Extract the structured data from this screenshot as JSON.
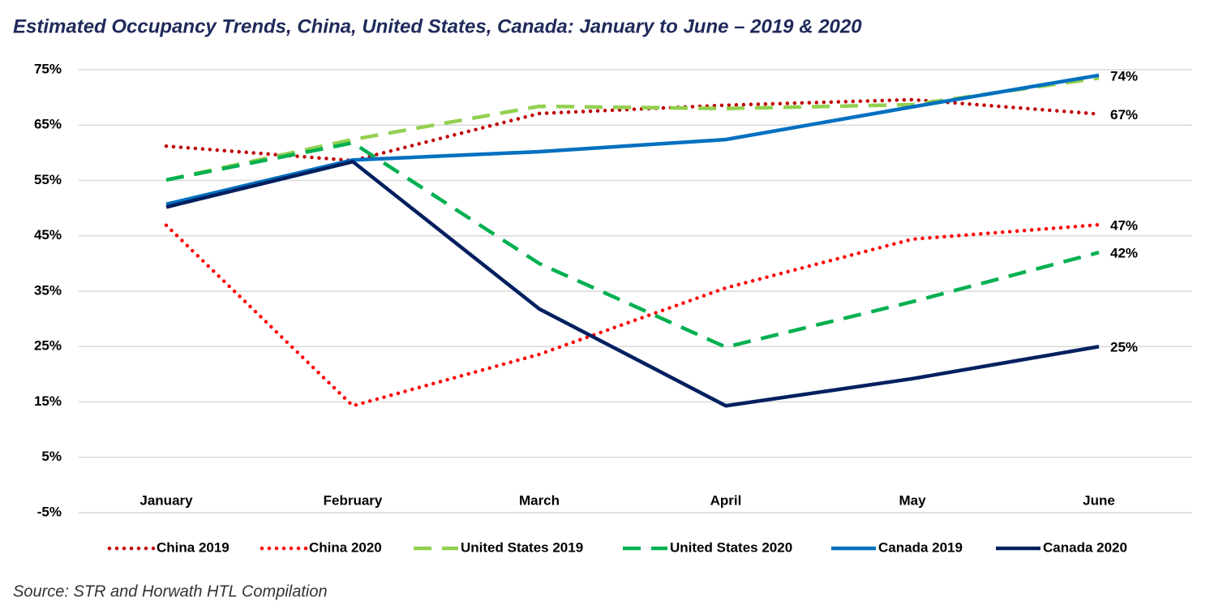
{
  "chart_data": {
    "type": "line",
    "title": "Estimated Occupancy Trends, China, United States, Canada: January to June – 2019 & 2020",
    "source": "Source: STR and Horwath HTL Compilation",
    "categories": [
      "January",
      "February",
      "March",
      "April",
      "May",
      "June"
    ],
    "ylim": [
      -5,
      75
    ],
    "yticks": [
      {
        "value": -5,
        "label": "-5%"
      },
      {
        "value": 5,
        "label": "5%"
      },
      {
        "value": 15,
        "label": "15%"
      },
      {
        "value": 25,
        "label": "25%"
      },
      {
        "value": 35,
        "label": "35%"
      },
      {
        "value": 45,
        "label": "45%"
      },
      {
        "value": 55,
        "label": "55%"
      },
      {
        "value": 65,
        "label": "65%"
      },
      {
        "value": 75,
        "label": "75%"
      }
    ],
    "grid": true,
    "legend": "bottom",
    "series": [
      {
        "name": "China 2019",
        "color": "#c00000",
        "dash": "dotted",
        "values": [
          61.2,
          58.6,
          67.1,
          68.6,
          69.6,
          67
        ],
        "value_labels": [
          null,
          null,
          null,
          null,
          null,
          "67%"
        ]
      },
      {
        "name": "China 2020",
        "color": "#ff0000",
        "dash": "dotted",
        "values": [
          46.9,
          14.3,
          23.6,
          35.6,
          44.4,
          47
        ],
        "value_labels": [
          null,
          null,
          null,
          null,
          null,
          "47%"
        ]
      },
      {
        "name": "United States 2019",
        "color": "#92d050",
        "dash": "dashed",
        "values": [
          55.1,
          62.4,
          68.4,
          68.0,
          68.7,
          73.5
        ]
      },
      {
        "name": "United States 2020",
        "color": "#00b050",
        "dash": "dashed",
        "values": [
          55.1,
          61.8,
          40.0,
          24.9,
          33.1,
          42
        ],
        "value_labels": [
          null,
          null,
          null,
          null,
          null,
          "42%"
        ]
      },
      {
        "name": "Canada 2019",
        "color": "#0070c0",
        "dash": "solid",
        "values": [
          50.7,
          58.7,
          60.2,
          62.4,
          68.3,
          74
        ],
        "value_labels": [
          null,
          null,
          null,
          null,
          null,
          "74%"
        ]
      },
      {
        "name": "Canada 2020",
        "color": "#002060",
        "dash": "solid",
        "values": [
          50.2,
          58.4,
          31.8,
          14.3,
          19.2,
          25
        ],
        "value_labels": [
          null,
          null,
          null,
          null,
          null,
          "25%"
        ]
      }
    ]
  }
}
